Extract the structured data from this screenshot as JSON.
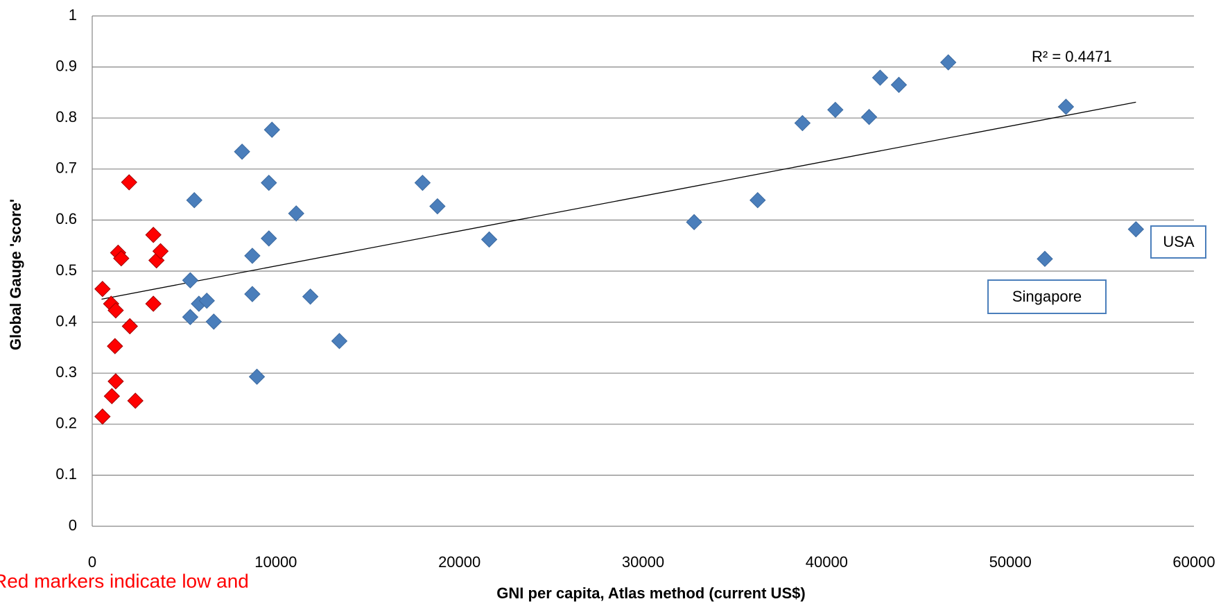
{
  "chart_data": {
    "type": "scatter",
    "x_label": "GNI per capita, Atlas method (current US$)",
    "y_label": "Global Gauge 'score'",
    "xlim": [
      0,
      60000
    ],
    "xticks": [
      0,
      10000,
      20000,
      30000,
      40000,
      50000,
      60000
    ],
    "ylim": [
      0,
      1
    ],
    "yticks": [
      0,
      0.1,
      0.2,
      0.3,
      0.4,
      0.5,
      0.6,
      0.7,
      0.8,
      0.9,
      1
    ],
    "grid": true,
    "series": [
      {
        "color": "#ff0000",
        "x": [
          560,
          1030,
          1280,
          1240,
          1280,
          1070,
          560,
          1410,
          1580,
          2050,
          2010,
          2350,
          3330,
          3500,
          3720,
          3330
        ],
        "values": [
          0.465,
          0.436,
          0.423,
          0.353,
          0.284,
          0.255,
          0.215,
          0.536,
          0.525,
          0.392,
          0.674,
          0.246,
          0.571,
          0.521,
          0.539,
          0.436
        ]
      },
      {
        "color": "#4a7ebb",
        "x": [
          5340,
          5340,
          5560,
          5810,
          6240,
          6620,
          8160,
          8720,
          8720,
          8970,
          9620,
          9620,
          9790,
          11110,
          11880,
          13460,
          17990,
          18800,
          21620,
          32780,
          36240,
          38680,
          40470,
          42310,
          42910,
          43930,
          46620,
          51880,
          53030,
          56840
        ],
        "values": [
          0.482,
          0.41,
          0.639,
          0.436,
          0.442,
          0.401,
          0.734,
          0.53,
          0.455,
          0.293,
          0.673,
          0.564,
          0.777,
          0.613,
          0.45,
          0.363,
          0.673,
          0.627,
          0.562,
          0.596,
          0.639,
          0.79,
          0.816,
          0.802,
          0.879,
          0.865,
          0.909,
          0.524,
          0.822,
          0.582
        ]
      }
    ],
    "trendline": {
      "x": [
        510,
        56840
      ],
      "values": [
        0.445,
        0.831
      ],
      "color": "#000000"
    },
    "annotations": [
      "R² = 0.4471",
      "USA",
      "Singapore"
    ],
    "note": "Red markers indicate low and"
  }
}
